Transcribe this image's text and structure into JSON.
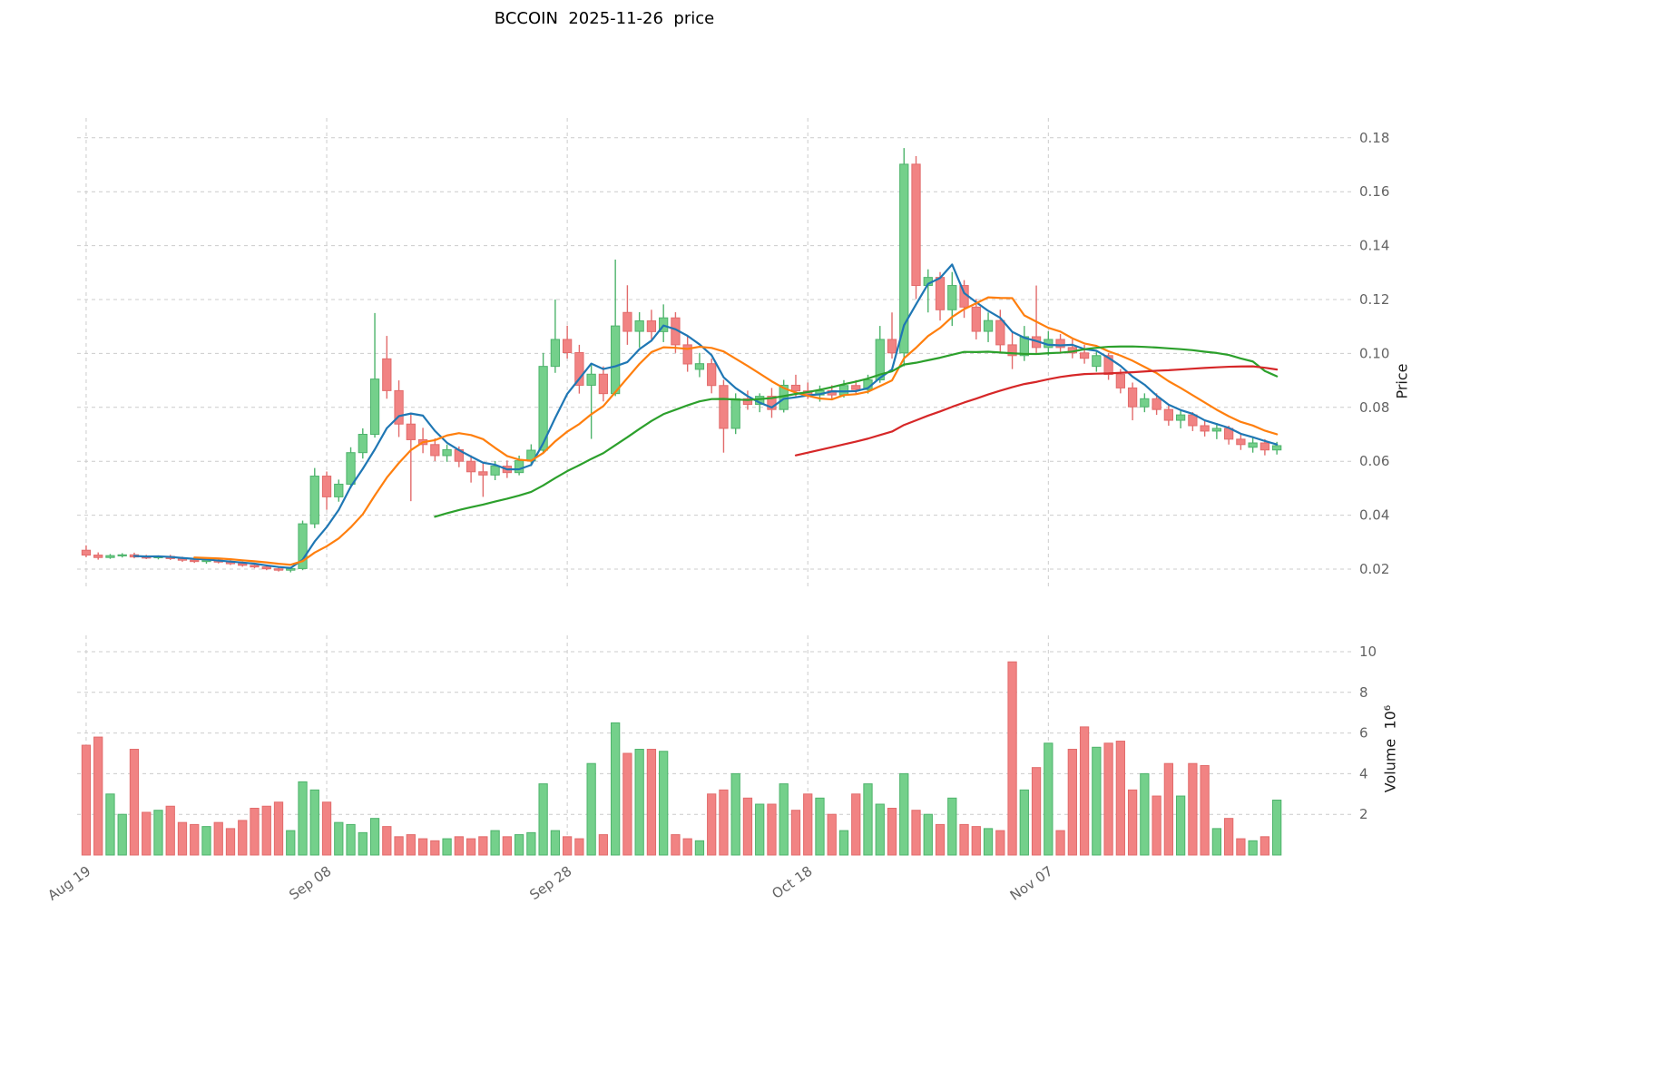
{
  "title": "BCCOIN  2025-11-26  price",
  "axes": {
    "price_label": "Price",
    "volume_label": "Volume  10⁶"
  },
  "colors": {
    "up_fill": "#74d08b",
    "up_edge": "#4db36b",
    "down_fill": "#f18383",
    "down_edge": "#e26b6b",
    "grid": "#cccccc",
    "tick_text": "#636363",
    "title_text": "#000000",
    "ma_blue": "#1f77b4",
    "ma_orange": "#ff7f0e",
    "ma_green": "#2ca02c",
    "ma_red": "#d62728"
  },
  "chart_data": {
    "type": "candlestick",
    "title": "BCCOIN  2025-11-26  price",
    "ylabel": "Price",
    "ylabel_volume": "Volume 10^6",
    "grid": "dashed",
    "price_ylim": [
      0.013,
      0.188
    ],
    "volume_ylim_millions": [
      0,
      10.8
    ],
    "price_ticks": [
      0.02,
      0.04,
      0.06,
      0.08,
      0.1,
      0.12,
      0.14,
      0.16,
      0.18
    ],
    "volume_ticks": [
      2,
      4,
      6,
      8,
      10
    ],
    "x_ticks": [
      {
        "index": 0,
        "label": "Aug 19"
      },
      {
        "index": 20,
        "label": "Sep 08"
      },
      {
        "index": 40,
        "label": "Sep 28"
      },
      {
        "index": 60,
        "label": "Oct 18"
      },
      {
        "index": 80,
        "label": "Nov 07"
      }
    ],
    "moving_averages": [
      {
        "name": "MA5",
        "window": 5,
        "color": "#1f77b4"
      },
      {
        "name": "MA10",
        "window": 10,
        "color": "#ff7f0e"
      },
      {
        "name": "MA30",
        "window": 30,
        "color": "#2ca02c"
      },
      {
        "name": "MA60",
        "window": 60,
        "color": "#d62728"
      }
    ],
    "candles": {
      "dates": [
        "2025-08-19",
        "2025-08-20",
        "2025-08-21",
        "2025-08-22",
        "2025-08-23",
        "2025-08-24",
        "2025-08-25",
        "2025-08-26",
        "2025-08-27",
        "2025-08-28",
        "2025-08-29",
        "2025-08-30",
        "2025-08-31",
        "2025-09-01",
        "2025-09-02",
        "2025-09-03",
        "2025-09-04",
        "2025-09-05",
        "2025-09-06",
        "2025-09-07",
        "2025-09-08",
        "2025-09-09",
        "2025-09-10",
        "2025-09-11",
        "2025-09-12",
        "2025-09-13",
        "2025-09-14",
        "2025-09-15",
        "2025-09-16",
        "2025-09-17",
        "2025-09-18",
        "2025-09-19",
        "2025-09-20",
        "2025-09-21",
        "2025-09-22",
        "2025-09-23",
        "2025-09-24",
        "2025-09-25",
        "2025-09-26",
        "2025-09-27",
        "2025-09-28",
        "2025-09-29",
        "2025-09-30",
        "2025-10-01",
        "2025-10-02",
        "2025-10-03",
        "2025-10-04",
        "2025-10-05",
        "2025-10-06",
        "2025-10-07",
        "2025-10-08",
        "2025-10-09",
        "2025-10-10",
        "2025-10-11",
        "2025-10-12",
        "2025-10-13",
        "2025-10-14",
        "2025-10-15",
        "2025-10-16",
        "2025-10-17",
        "2025-10-18",
        "2025-10-19",
        "2025-10-20",
        "2025-10-21",
        "2025-10-22",
        "2025-10-23",
        "2025-10-24",
        "2025-10-25",
        "2025-10-26",
        "2025-10-27",
        "2025-10-28",
        "2025-10-29",
        "2025-10-30",
        "2025-10-31",
        "2025-11-01",
        "2025-11-02",
        "2025-11-03",
        "2025-11-04",
        "2025-11-05",
        "2025-11-06",
        "2025-11-07",
        "2025-11-08",
        "2025-11-09",
        "2025-11-10",
        "2025-11-11",
        "2025-11-12",
        "2025-11-13",
        "2025-11-14",
        "2025-11-15",
        "2025-11-16",
        "2025-11-17",
        "2025-11-18",
        "2025-11-19",
        "2025-11-20",
        "2025-11-21",
        "2025-11-22",
        "2025-11-23",
        "2025-11-24",
        "2025-11-25",
        "2025-11-26"
      ],
      "open": [
        0.027,
        0.0252,
        0.0243,
        0.025,
        0.0253,
        0.0245,
        0.0242,
        0.0247,
        0.0239,
        0.0233,
        0.0228,
        0.0233,
        0.0226,
        0.022,
        0.0214,
        0.0208,
        0.0201,
        0.0196,
        0.0202,
        0.0368,
        0.0545,
        0.0468,
        0.0515,
        0.0632,
        0.07,
        0.098,
        0.0862,
        0.0738,
        0.068,
        0.0662,
        0.0621,
        0.0643,
        0.06,
        0.0561,
        0.0549,
        0.0582,
        0.0558,
        0.0602,
        0.0641,
        0.0952,
        0.1052,
        0.1003,
        0.0882,
        0.0923,
        0.0851,
        0.1152,
        0.1082,
        0.1121,
        0.1081,
        0.1132,
        0.1032,
        0.0941,
        0.0962,
        0.0881,
        0.0722,
        0.0832,
        0.0811,
        0.0841,
        0.0792,
        0.0882,
        0.0861,
        0.0846,
        0.0862,
        0.0846,
        0.0881,
        0.0866,
        0.0902,
        0.1052,
        0.1002,
        0.1702,
        0.1252,
        0.1282,
        0.1162,
        0.1252,
        0.1172,
        0.1082,
        0.1122,
        0.1032,
        0.0992,
        0.1062,
        0.1022,
        0.1052,
        0.1022,
        0.1002,
        0.0952,
        0.0992,
        0.0922,
        0.0872,
        0.0802,
        0.0832,
        0.0792,
        0.0752,
        0.0772,
        0.0732,
        0.0712,
        0.0722,
        0.0682,
        0.0652,
        0.0668,
        0.0642
      ],
      "high": [
        0.0288,
        0.0262,
        0.0256,
        0.0259,
        0.0261,
        0.0253,
        0.0251,
        0.0253,
        0.0246,
        0.0241,
        0.0237,
        0.0239,
        0.0233,
        0.0228,
        0.0221,
        0.0215,
        0.0209,
        0.0206,
        0.038,
        0.0575,
        0.0562,
        0.0532,
        0.0652,
        0.0722,
        0.115,
        0.1065,
        0.09,
        0.078,
        0.0724,
        0.0685,
        0.0662,
        0.0655,
        0.0622,
        0.0592,
        0.0601,
        0.0603,
        0.0621,
        0.0663,
        0.1002,
        0.12,
        0.1103,
        0.1032,
        0.0961,
        0.0952,
        0.1348,
        0.1253,
        0.1153,
        0.1162,
        0.1182,
        0.1153,
        0.1062,
        0.1002,
        0.0981,
        0.0902,
        0.0852,
        0.0862,
        0.0852,
        0.0872,
        0.0902,
        0.0921,
        0.0892,
        0.0881,
        0.0882,
        0.0901,
        0.0901,
        0.0921,
        0.1102,
        0.1152,
        0.1762,
        0.1732,
        0.1312,
        0.1302,
        0.1302,
        0.1272,
        0.1202,
        0.1152,
        0.1162,
        0.1082,
        0.1102,
        0.1252,
        0.1082,
        0.1072,
        0.1052,
        0.1032,
        0.1012,
        0.1002,
        0.0942,
        0.0892,
        0.0852,
        0.0852,
        0.0812,
        0.0792,
        0.0782,
        0.0752,
        0.0742,
        0.0732,
        0.0702,
        0.0692,
        0.0682,
        0.0672
      ],
      "low": [
        0.0244,
        0.0235,
        0.0238,
        0.0243,
        0.024,
        0.0237,
        0.0236,
        0.0234,
        0.0227,
        0.0223,
        0.022,
        0.0221,
        0.0215,
        0.0209,
        0.0203,
        0.0196,
        0.0191,
        0.0188,
        0.0196,
        0.0352,
        0.042,
        0.045,
        0.05,
        0.061,
        0.0688,
        0.0832,
        0.069,
        0.0452,
        0.063,
        0.0601,
        0.0598,
        0.0578,
        0.0521,
        0.0468,
        0.053,
        0.0538,
        0.0548,
        0.0582,
        0.0632,
        0.0928,
        0.0981,
        0.0851,
        0.0683,
        0.0822,
        0.0842,
        0.1032,
        0.1022,
        0.1052,
        0.1042,
        0.1002,
        0.0932,
        0.0912,
        0.0852,
        0.0632,
        0.0701,
        0.0791,
        0.0782,
        0.0761,
        0.0781,
        0.0841,
        0.0831,
        0.0821,
        0.0831,
        0.0836,
        0.0851,
        0.0851,
        0.0891,
        0.0981,
        0.0952,
        0.1202,
        0.1152,
        0.1122,
        0.1102,
        0.1132,
        0.1052,
        0.1042,
        0.1002,
        0.0942,
        0.0972,
        0.1002,
        0.0992,
        0.1002,
        0.0982,
        0.0962,
        0.0932,
        0.0902,
        0.0852,
        0.0752,
        0.0782,
        0.0772,
        0.0732,
        0.0722,
        0.0712,
        0.0692,
        0.0682,
        0.0662,
        0.0642,
        0.0632,
        0.0622,
        0.0625
      ],
      "close": [
        0.0252,
        0.0243,
        0.025,
        0.0253,
        0.0245,
        0.0242,
        0.0247,
        0.0239,
        0.0233,
        0.0228,
        0.0233,
        0.0226,
        0.022,
        0.0214,
        0.0208,
        0.0201,
        0.0196,
        0.0202,
        0.0368,
        0.0545,
        0.0468,
        0.0515,
        0.0632,
        0.07,
        0.0905,
        0.0862,
        0.0738,
        0.068,
        0.0662,
        0.0621,
        0.0643,
        0.06,
        0.0561,
        0.0549,
        0.0582,
        0.0558,
        0.0602,
        0.0641,
        0.0952,
        0.1052,
        0.1003,
        0.0882,
        0.0923,
        0.0851,
        0.1102,
        0.1082,
        0.1121,
        0.1081,
        0.1132,
        0.1032,
        0.0961,
        0.0962,
        0.0881,
        0.0722,
        0.0832,
        0.0811,
        0.0841,
        0.0792,
        0.0882,
        0.0861,
        0.0846,
        0.0862,
        0.0846,
        0.0881,
        0.0866,
        0.0902,
        0.1052,
        0.1002,
        0.1702,
        0.1252,
        0.1282,
        0.1162,
        0.1252,
        0.1172,
        0.1082,
        0.1122,
        0.1032,
        0.0992,
        0.1062,
        0.1022,
        0.1052,
        0.1022,
        0.1002,
        0.0982,
        0.0992,
        0.0922,
        0.0872,
        0.0802,
        0.0832,
        0.0792,
        0.0752,
        0.0772,
        0.0732,
        0.0712,
        0.0722,
        0.0682,
        0.0662,
        0.0668,
        0.0642,
        0.0658
      ],
      "volume_millions": [
        5.4,
        5.8,
        3.0,
        2.0,
        5.2,
        2.1,
        2.2,
        2.4,
        1.6,
        1.5,
        1.4,
        1.6,
        1.3,
        1.7,
        2.3,
        2.4,
        2.6,
        1.2,
        3.6,
        3.2,
        2.6,
        1.6,
        1.5,
        1.1,
        1.8,
        1.4,
        0.9,
        1.0,
        0.8,
        0.7,
        0.8,
        0.9,
        0.8,
        0.9,
        1.2,
        0.9,
        1.0,
        1.1,
        3.5,
        1.2,
        0.9,
        0.8,
        4.5,
        1.0,
        6.5,
        5.0,
        5.2,
        5.2,
        5.1,
        1.0,
        0.8,
        0.7,
        3.0,
        3.2,
        4.0,
        2.8,
        2.5,
        2.5,
        3.5,
        2.2,
        3.0,
        2.8,
        2.0,
        1.2,
        3.0,
        3.5,
        2.5,
        2.3,
        4.0,
        2.2,
        2.0,
        1.5,
        2.8,
        1.5,
        1.4,
        1.3,
        1.2,
        9.5,
        3.2,
        4.3,
        5.5,
        1.2,
        5.2,
        6.3,
        5.3,
        5.5,
        5.6,
        3.2,
        4.0,
        2.9,
        4.5,
        2.9,
        4.5,
        4.4,
        1.3,
        1.8,
        0.8,
        0.7,
        0.9,
        2.7
      ]
    }
  }
}
